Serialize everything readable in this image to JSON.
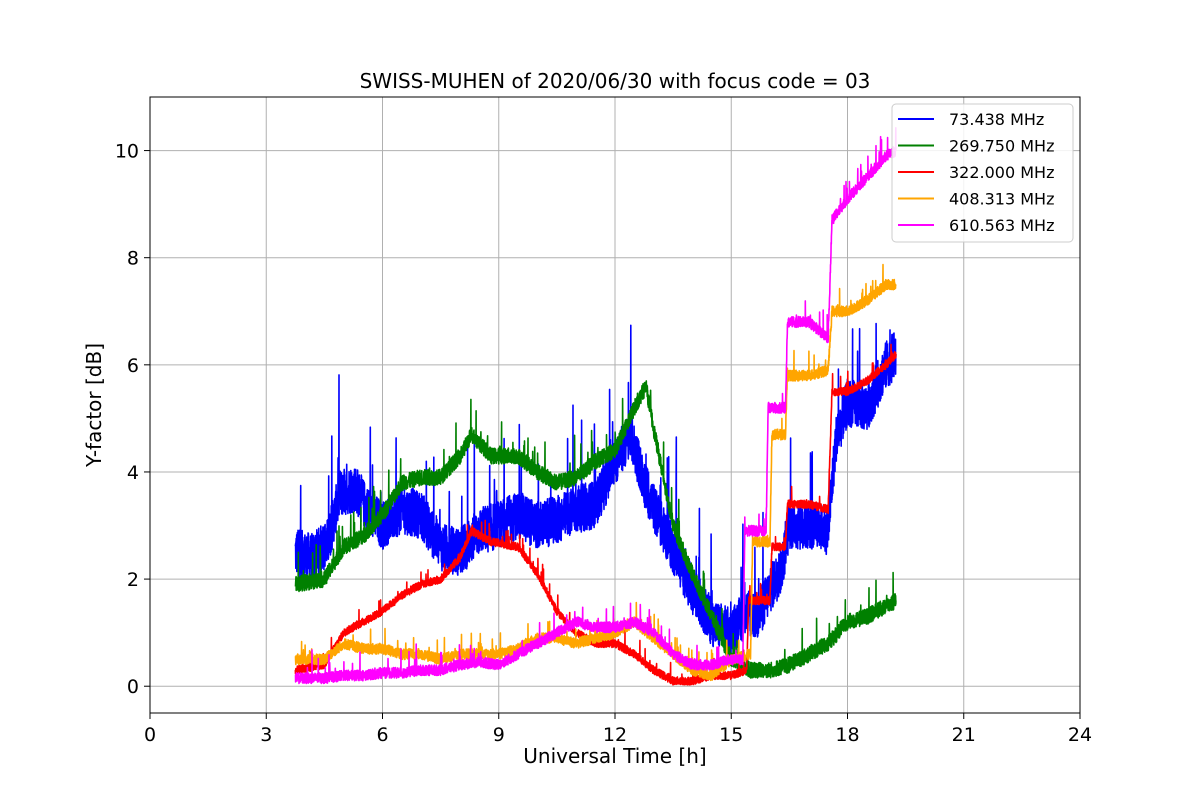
{
  "chart_data": {
    "type": "line",
    "title": "SWISS-MUHEN of 2020/06/30 with focus code = 03",
    "xlabel": "Universal Time [h]",
    "ylabel": "Y-factor [dB]",
    "xlim": [
      0,
      24
    ],
    "ylim": [
      -0.5,
      11
    ],
    "xticks": [
      0,
      3,
      6,
      9,
      12,
      15,
      18,
      21,
      24
    ],
    "yticks": [
      0,
      2,
      4,
      6,
      8,
      10
    ],
    "grid": true,
    "legend_position": "top-right",
    "series": [
      {
        "name": " 73.438 MHz",
        "color": "#0000ff",
        "noise": 0.9,
        "x": [
          3.75,
          4.2,
          4.6,
          4.9,
          5.3,
          5.6,
          6.0,
          6.5,
          7.0,
          7.5,
          8.0,
          8.5,
          9.0,
          9.5,
          10.0,
          10.5,
          11.0,
          11.5,
          12.0,
          12.4,
          12.8,
          13.2,
          13.6,
          14.0,
          14.5,
          15.0,
          15.4,
          15.7,
          16.0,
          16.3,
          16.5,
          17.0,
          17.5,
          17.7,
          18.0,
          18.5,
          19.0,
          19.25
        ],
        "y": [
          2.5,
          2.4,
          2.7,
          3.6,
          3.7,
          3.3,
          3.0,
          3.3,
          3.2,
          2.6,
          2.5,
          2.9,
          3.0,
          3.2,
          3.0,
          3.1,
          3.3,
          3.4,
          4.2,
          4.7,
          3.7,
          3.0,
          2.4,
          1.8,
          1.2,
          1.0,
          1.4,
          1.3,
          1.8,
          2.2,
          3.0,
          3.0,
          2.9,
          4.6,
          5.3,
          5.2,
          6.0,
          6.2
        ]
      },
      {
        "name": "269.750 MHz",
        "color": "#008000",
        "noise": 0.3,
        "x": [
          3.75,
          4.5,
          5.0,
          5.5,
          6.0,
          6.5,
          7.0,
          7.5,
          8.0,
          8.3,
          8.8,
          9.5,
          10.0,
          10.5,
          11.0,
          11.5,
          12.0,
          12.5,
          12.8,
          13.0,
          13.5,
          14.0,
          14.5,
          15.0,
          15.5,
          16.0,
          16.5,
          17.0,
          17.5,
          18.0,
          18.5,
          19.0,
          19.25
        ],
        "y": [
          1.9,
          2.0,
          2.6,
          2.8,
          3.2,
          3.8,
          3.9,
          3.9,
          4.3,
          4.7,
          4.3,
          4.3,
          4.0,
          3.8,
          3.9,
          4.2,
          4.4,
          5.2,
          5.6,
          4.8,
          3.0,
          2.1,
          1.3,
          0.5,
          0.3,
          0.3,
          0.4,
          0.6,
          0.8,
          1.2,
          1.3,
          1.5,
          1.6
        ]
      },
      {
        "name": "322.000 MHz",
        "color": "#ff0000",
        "noise": 0.15,
        "x": [
          3.75,
          4.5,
          5.0,
          5.5,
          6.0,
          6.5,
          7.0,
          7.5,
          8.0,
          8.3,
          8.8,
          9.5,
          10.0,
          10.5,
          11.0,
          11.5,
          12.0,
          12.5,
          13.0,
          13.5,
          14.0,
          14.5,
          15.0,
          15.4,
          15.45,
          16.0,
          16.05,
          16.4,
          16.45,
          17.0,
          17.5,
          17.6,
          18.0,
          18.5,
          19.0,
          19.25
        ],
        "y": [
          0.3,
          0.4,
          1.0,
          1.2,
          1.4,
          1.7,
          1.9,
          2.0,
          2.4,
          2.9,
          2.7,
          2.6,
          2.1,
          1.4,
          1.0,
          0.8,
          0.8,
          0.6,
          0.3,
          0.1,
          0.1,
          0.2,
          0.2,
          0.3,
          1.6,
          1.6,
          2.6,
          2.6,
          3.4,
          3.4,
          3.3,
          5.5,
          5.5,
          5.7,
          6.0,
          6.2
        ]
      },
      {
        "name": "408.313 MHz",
        "color": "#ffa500",
        "noise": 0.2,
        "x": [
          3.75,
          4.5,
          5.0,
          5.5,
          6.0,
          6.5,
          7.0,
          7.5,
          8.0,
          8.5,
          9.0,
          9.5,
          10.0,
          10.5,
          11.0,
          11.5,
          12.0,
          12.5,
          13.0,
          13.5,
          14.0,
          14.5,
          15.0,
          15.5,
          15.55,
          16.0,
          16.05,
          16.4,
          16.45,
          17.0,
          17.5,
          17.6,
          18.0,
          18.5,
          19.0,
          19.25
        ],
        "y": [
          0.5,
          0.5,
          0.8,
          0.7,
          0.7,
          0.6,
          0.6,
          0.5,
          0.6,
          0.6,
          0.6,
          0.7,
          0.9,
          0.9,
          0.8,
          0.9,
          1.0,
          1.2,
          0.9,
          0.6,
          0.3,
          0.2,
          0.5,
          0.6,
          2.7,
          2.7,
          4.7,
          4.7,
          5.8,
          5.8,
          5.9,
          7.0,
          7.0,
          7.2,
          7.5,
          7.5
        ]
      },
      {
        "name": "610.563 MHz",
        "color": "#ff00ff",
        "noise": 0.2,
        "x": [
          3.75,
          4.5,
          5.0,
          5.5,
          6.0,
          6.5,
          7.0,
          7.5,
          8.0,
          8.5,
          9.0,
          9.5,
          10.0,
          10.5,
          11.0,
          11.5,
          12.0,
          12.5,
          13.0,
          13.5,
          14.0,
          14.5,
          15.0,
          15.3,
          15.35,
          15.9,
          15.95,
          16.4,
          16.45,
          17.0,
          17.5,
          17.6,
          18.0,
          18.5,
          19.0,
          19.25
        ],
        "y": [
          0.15,
          0.15,
          0.2,
          0.2,
          0.25,
          0.25,
          0.3,
          0.3,
          0.4,
          0.45,
          0.4,
          0.6,
          0.8,
          1.0,
          1.2,
          1.1,
          1.1,
          1.2,
          1.0,
          0.6,
          0.4,
          0.4,
          0.5,
          0.5,
          2.9,
          2.9,
          5.2,
          5.2,
          6.8,
          6.8,
          6.5,
          8.7,
          9.1,
          9.5,
          9.9,
          10.0
        ]
      }
    ]
  }
}
